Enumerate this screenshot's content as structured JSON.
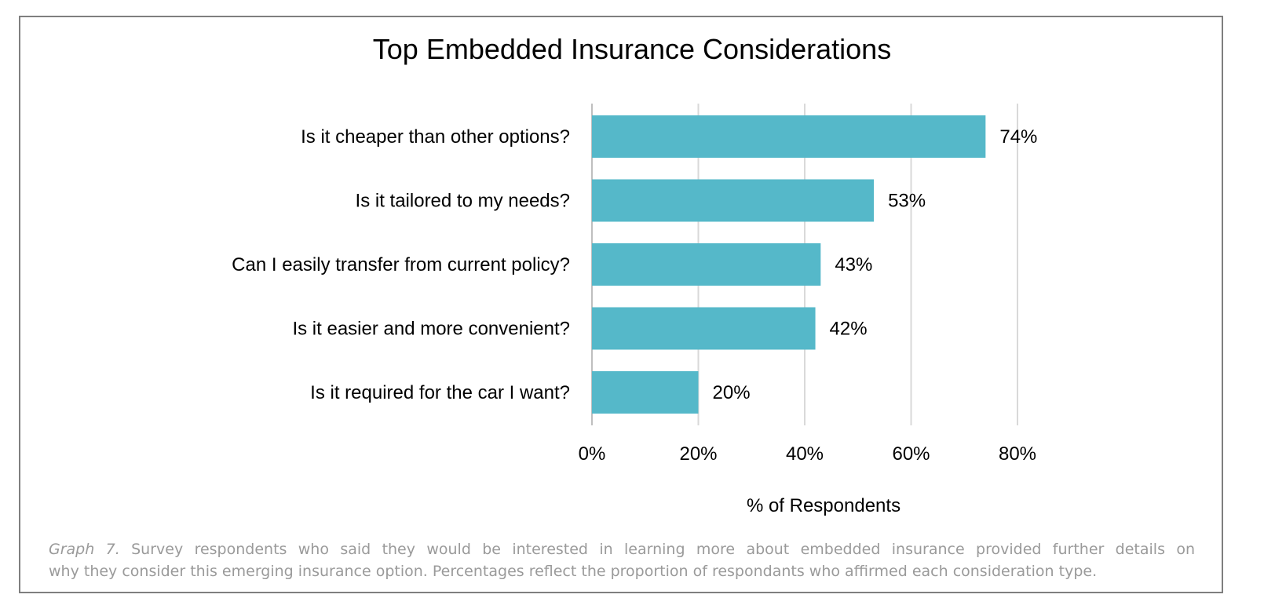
{
  "chart_data": {
    "type": "bar",
    "orientation": "horizontal",
    "title": "Top Embedded Insurance Considerations",
    "categories": [
      "Is it cheaper than other options?",
      "Is it tailored to my needs?",
      "Can I easily transfer from current policy?",
      "Is it easier and more convenient?",
      "Is it required for the car I want?"
    ],
    "values": [
      74,
      53,
      43,
      42,
      20
    ],
    "value_labels": [
      "74%",
      "53%",
      "43%",
      "42%",
      "20%"
    ],
    "xlabel": "% of Respondents",
    "ylabel": "",
    "xlim": [
      0,
      80
    ],
    "xticks": [
      0,
      20,
      40,
      60,
      80
    ],
    "xtick_labels": [
      "0%",
      "20%",
      "40%",
      "60%",
      "80%"
    ],
    "grid": true,
    "bar_color": "#55b8c9"
  },
  "caption": {
    "label": "Graph 7.",
    "line1": "Survey respondents who said they would be interested in learning more about embedded insurance provided further details on",
    "line2": "why they consider this emerging insurance option. Percentages reflect the proportion of respondants who affirmed each consideration type."
  }
}
